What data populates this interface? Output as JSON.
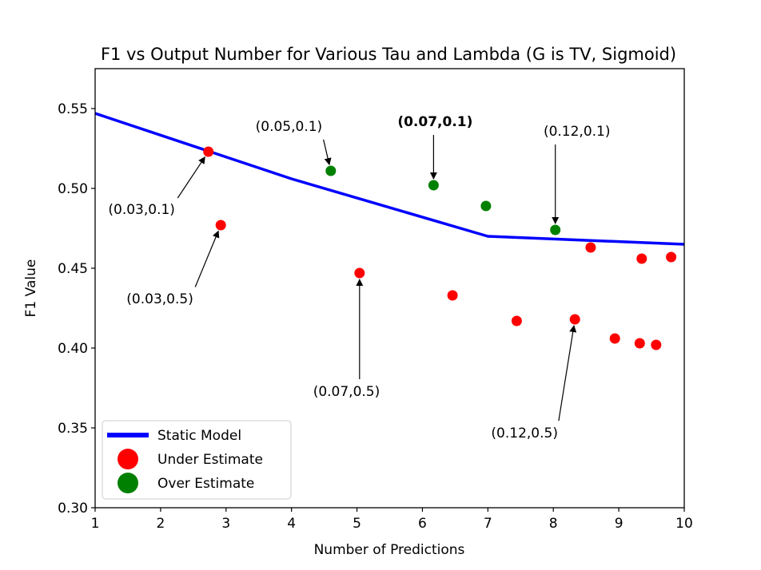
{
  "chart_data": {
    "type": "scatter",
    "title": "F1 vs Output Number for Various Tau and Lambda (G is TV, Sigmoid)",
    "xlabel": "Number of Predictions",
    "ylabel": "F1 Value",
    "xlim": [
      1,
      10
    ],
    "ylim": [
      0.3,
      0.575
    ],
    "xticks": [
      1,
      2,
      3,
      4,
      5,
      6,
      7,
      8,
      9,
      10
    ],
    "xtick_labels": [
      "1",
      "2",
      "3",
      "4",
      "5",
      "6",
      "7",
      "8",
      "9",
      "10"
    ],
    "yticks": [
      0.3,
      0.35,
      0.4,
      0.45,
      0.5,
      0.55
    ],
    "ytick_labels": [
      "0.30",
      "0.35",
      "0.40",
      "0.45",
      "0.50",
      "0.55"
    ],
    "grid": false,
    "legend_position": "lower-left",
    "series": [
      {
        "name": "Static Model",
        "kind": "line",
        "color": "#0000ff",
        "x": [
          1,
          4,
          7,
          10
        ],
        "y": [
          0.547,
          0.506,
          0.47,
          0.465
        ]
      },
      {
        "name": "Under Estimate",
        "kind": "scatter",
        "color": "#ff0000",
        "x": [
          2.73,
          2.92,
          5.04,
          6.46,
          7.44,
          8.33,
          8.57,
          8.94,
          9.32,
          9.35,
          9.57,
          9.8
        ],
        "y": [
          0.523,
          0.477,
          0.447,
          0.433,
          0.417,
          0.418,
          0.463,
          0.406,
          0.403,
          0.456,
          0.402,
          0.457
        ]
      },
      {
        "name": "Over Estimate",
        "kind": "scatter",
        "color": "#008000",
        "x": [
          4.6,
          6.17,
          6.97,
          8.03
        ],
        "y": [
          0.511,
          0.502,
          0.489,
          0.474
        ]
      }
    ],
    "annotations": [
      {
        "text": "(0.03,0.1)",
        "bold": false,
        "point": [
          2.73,
          0.523
        ],
        "text_at": [
          1.2,
          0.484
        ]
      },
      {
        "text": "(0.05,0.1)",
        "bold": false,
        "point": [
          4.6,
          0.511
        ],
        "text_at": [
          3.45,
          0.536
        ]
      },
      {
        "text": "(0.07,0.1)",
        "bold": true,
        "point": [
          6.17,
          0.502
        ],
        "text_at": [
          5.62,
          0.539
        ]
      },
      {
        "text": "(0.12,0.1)",
        "bold": false,
        "point": [
          8.03,
          0.474
        ],
        "text_at": [
          7.85,
          0.533
        ]
      },
      {
        "text": "(0.03,0.5)",
        "bold": false,
        "point": [
          2.92,
          0.477
        ],
        "text_at": [
          1.48,
          0.428
        ]
      },
      {
        "text": "(0.07,0.5)",
        "bold": false,
        "point": [
          5.04,
          0.447
        ],
        "text_at": [
          4.33,
          0.37
        ]
      },
      {
        "text": "(0.12,0.5)",
        "bold": false,
        "point": [
          8.33,
          0.418
        ],
        "text_at": [
          7.05,
          0.344
        ]
      }
    ]
  }
}
